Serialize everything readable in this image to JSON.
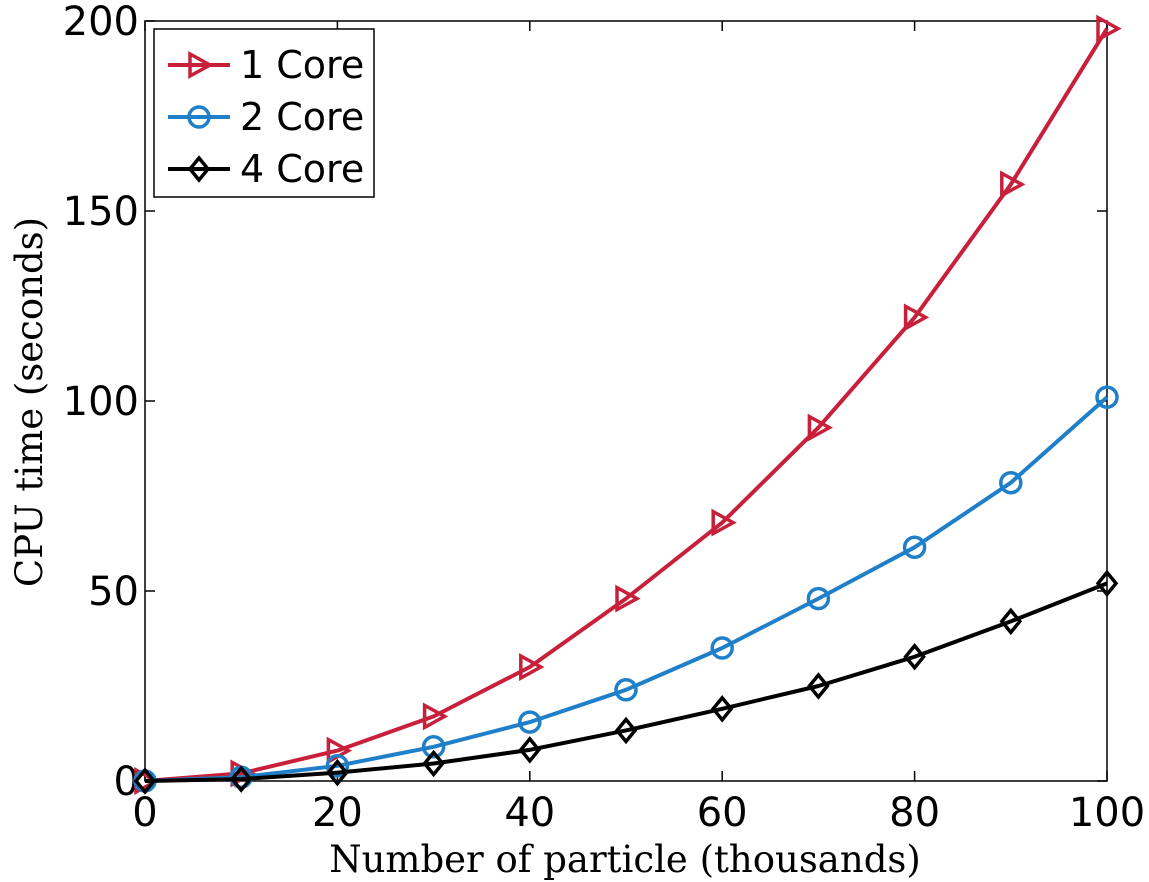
{
  "chart_data": {
    "type": "line",
    "title": "",
    "xlabel": "Number of particle (thousands)",
    "ylabel": "CPU time (seconds)",
    "xlim": [
      0,
      100
    ],
    "ylim": [
      0,
      200
    ],
    "x_ticks": [
      0,
      20,
      40,
      60,
      80,
      100
    ],
    "y_ticks": [
      0,
      50,
      100,
      150,
      200
    ],
    "grid": false,
    "legend_position": "top-left",
    "x": [
      0,
      10,
      20,
      30,
      40,
      50,
      60,
      70,
      80,
      90,
      100
    ],
    "series": [
      {
        "name": "1 Core",
        "color": "#c8203a",
        "marker": "triangle-right",
        "values": [
          0,
          2,
          8,
          17,
          30,
          48,
          68,
          93,
          122,
          157,
          198
        ]
      },
      {
        "name": "2 Core",
        "color": "#1f7fc8",
        "marker": "circle",
        "values": [
          0,
          1,
          4,
          9,
          15.5,
          24,
          35,
          48,
          61.5,
          78.5,
          101
        ]
      },
      {
        "name": "4 Core",
        "color": "#000000",
        "marker": "diamond",
        "values": [
          0,
          0.5,
          2.2,
          4.6,
          8.2,
          13.3,
          19,
          25,
          32.7,
          42,
          52
        ]
      }
    ]
  }
}
